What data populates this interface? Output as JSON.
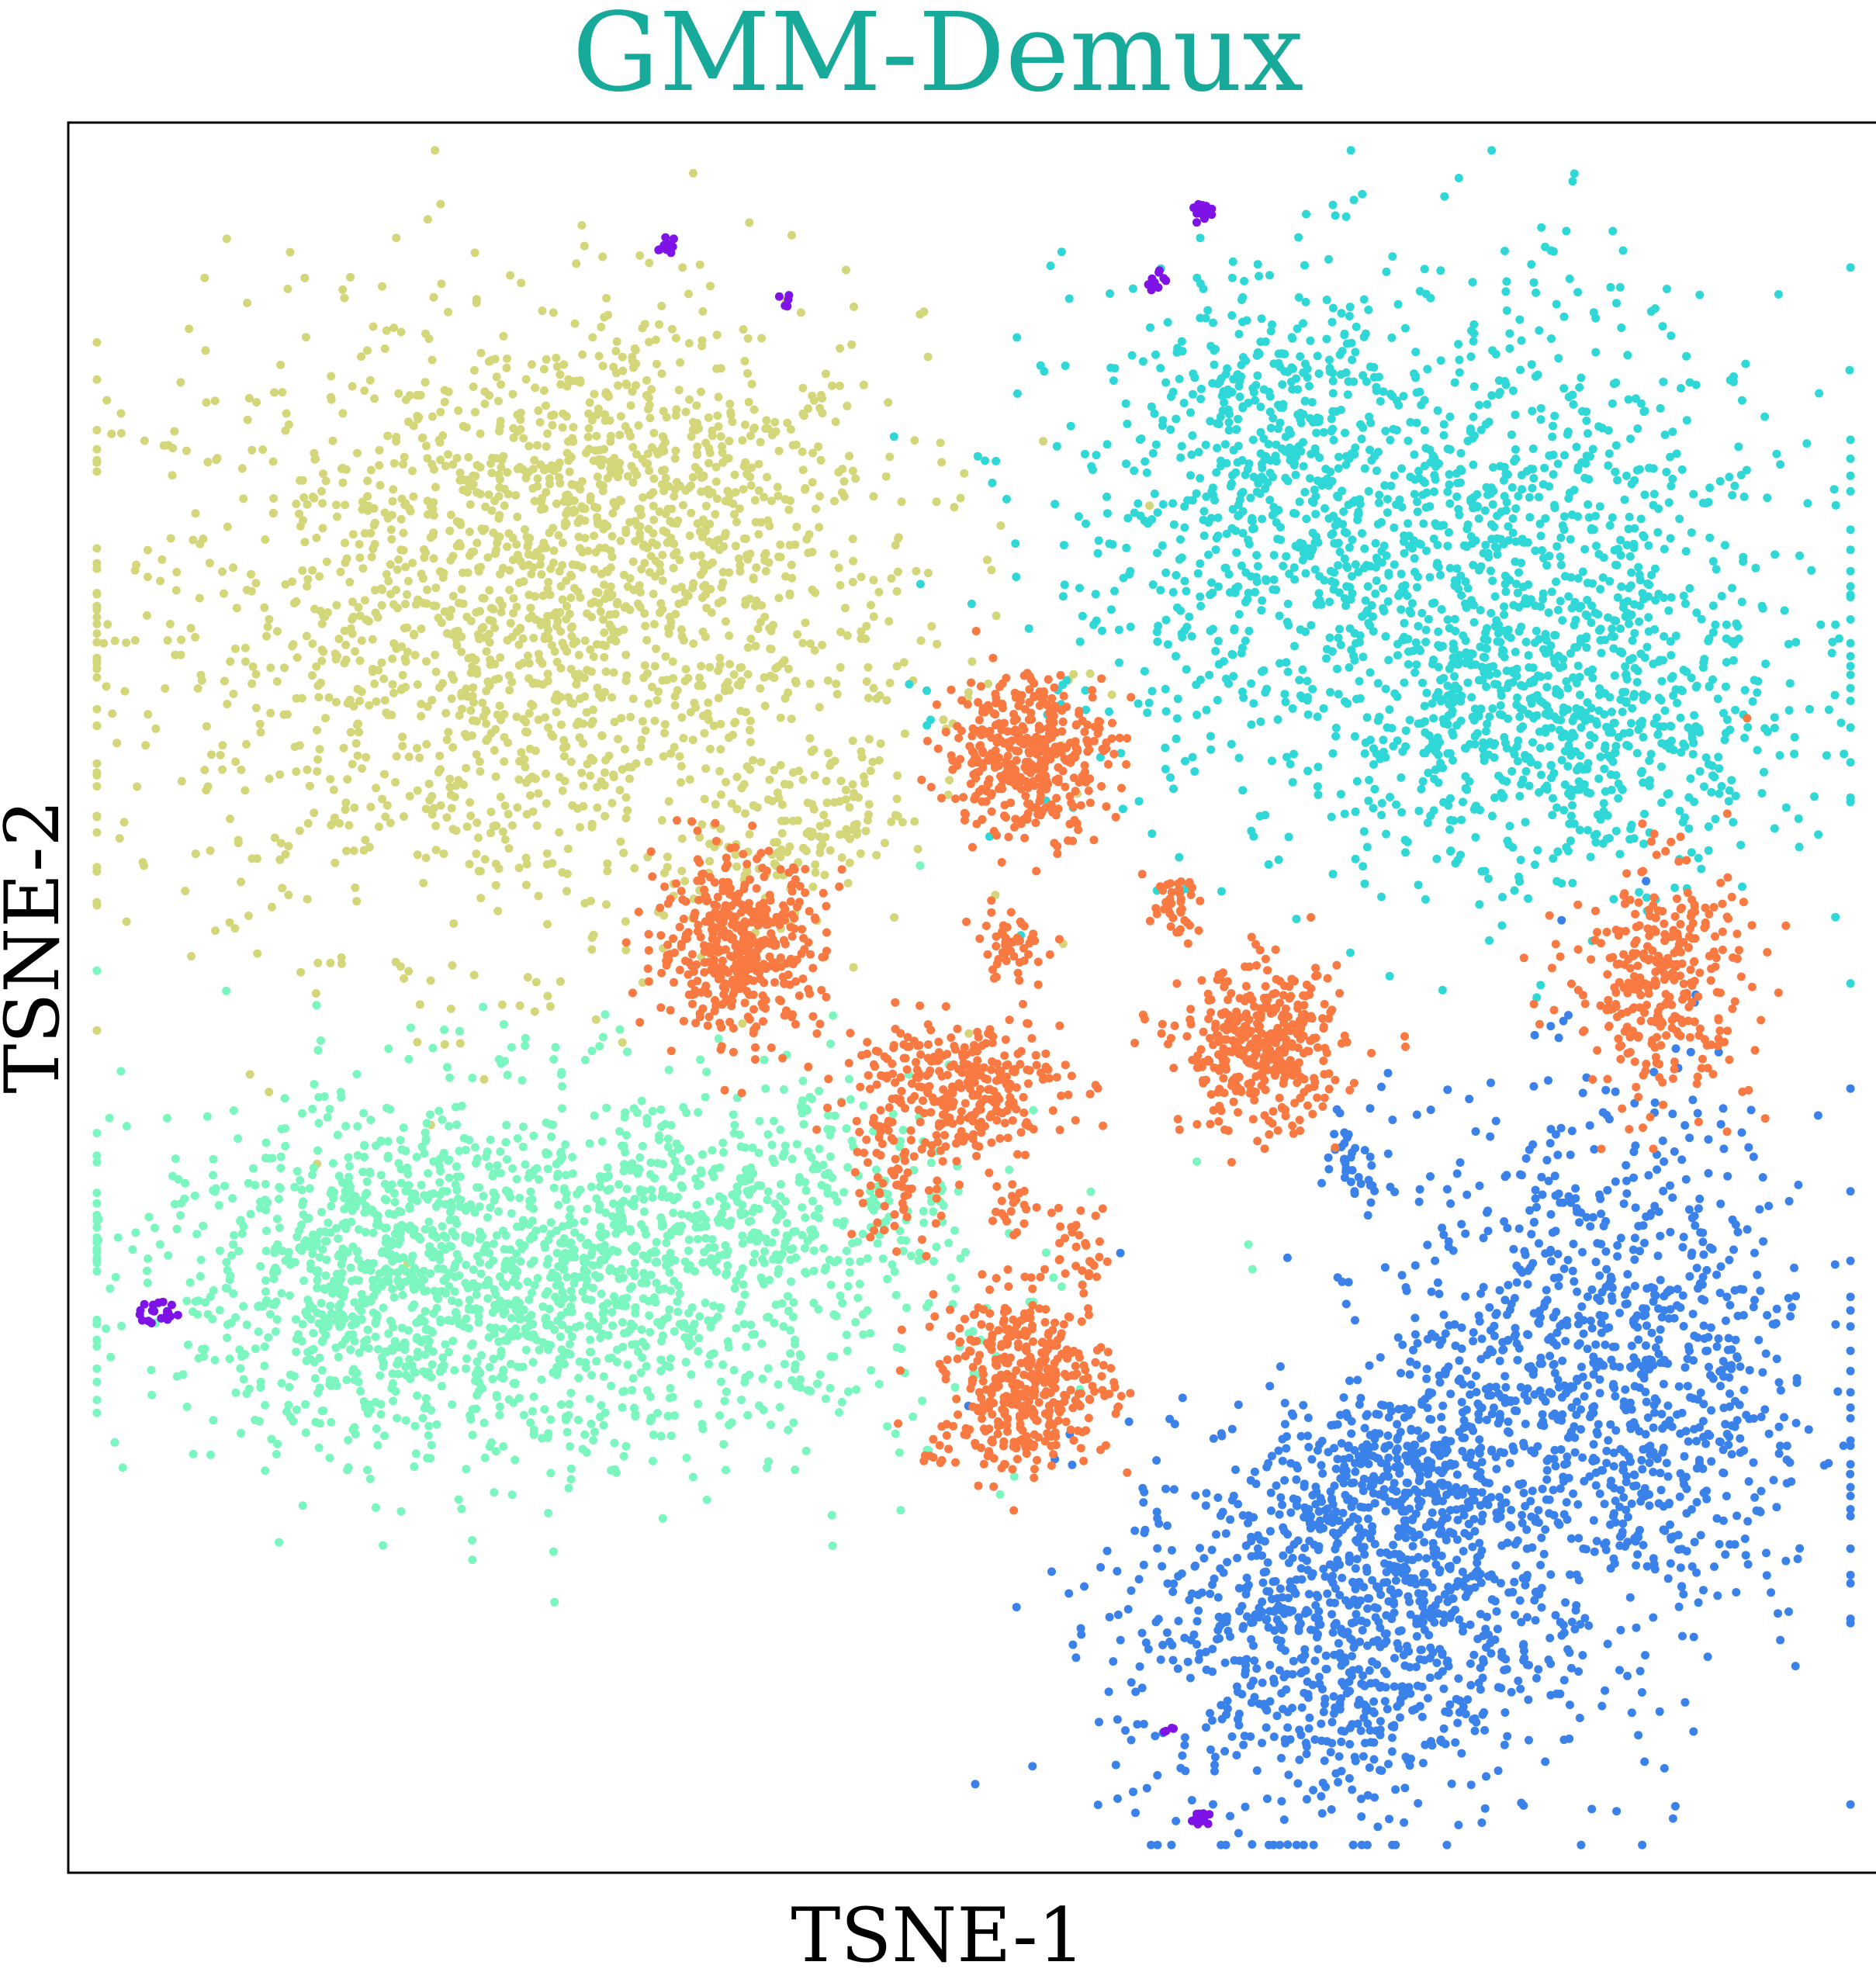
{
  "chart_data": {
    "type": "scatter",
    "title": "GMM-Demux",
    "xlabel": "TSNE-1",
    "ylabel": "TSNE-2",
    "xlim": [
      0,
      100
    ],
    "ylim": [
      0,
      100
    ],
    "ticks_visible": false,
    "grid": false,
    "legend": "none",
    "series": [
      {
        "color": "#d4d67a",
        "clusters": [
          {
            "cx": 25,
            "cy": 71,
            "sx": 11,
            "sy": 9,
            "n": 1700
          },
          {
            "cx": 32,
            "cy": 80,
            "sx": 5,
            "sy": 5,
            "n": 350
          },
          {
            "cx": 43,
            "cy": 61,
            "sx": 1.5,
            "sy": 1.5,
            "n": 40
          },
          {
            "cx": 39,
            "cy": 59,
            "sx": 2,
            "sy": 2,
            "n": 70
          }
        ]
      },
      {
        "color": "#2fd8d6",
        "clusters": [
          {
            "cx": 75,
            "cy": 75,
            "sx": 10,
            "sy": 8,
            "n": 1500
          },
          {
            "cx": 83,
            "cy": 65,
            "sx": 6,
            "sy": 4,
            "n": 500
          },
          {
            "cx": 66,
            "cy": 83,
            "sx": 3.5,
            "sy": 4,
            "n": 200
          }
        ]
      },
      {
        "color": "#7cf6bf",
        "clusters": [
          {
            "cx": 26,
            "cy": 34,
            "sx": 11,
            "sy": 5.5,
            "n": 1600
          },
          {
            "cx": 16,
            "cy": 34,
            "sx": 4,
            "sy": 4,
            "n": 300
          },
          {
            "cx": 39,
            "cy": 39,
            "sx": 5,
            "sy": 3,
            "n": 200
          }
        ]
      },
      {
        "color": "#3a82ea",
        "clusters": [
          {
            "cx": 70,
            "cy": 14,
            "sx": 6,
            "sy": 6,
            "n": 1000
          },
          {
            "cx": 85,
            "cy": 28,
            "sx": 6,
            "sy": 8,
            "n": 1100
          },
          {
            "cx": 74,
            "cy": 22,
            "sx": 3,
            "sy": 3,
            "n": 300
          },
          {
            "cx": 71,
            "cy": 41,
            "sx": 1,
            "sy": 1.5,
            "n": 40
          }
        ]
      },
      {
        "color": "#f87941",
        "clusters": [
          {
            "cx": 53,
            "cy": 64,
            "sx": 2.3,
            "sy": 2.3,
            "n": 400
          },
          {
            "cx": 37,
            "cy": 53,
            "sx": 2.3,
            "sy": 2.5,
            "n": 450
          },
          {
            "cx": 66,
            "cy": 47,
            "sx": 2.2,
            "sy": 2.3,
            "n": 400
          },
          {
            "cx": 53,
            "cy": 28,
            "sx": 2.3,
            "sy": 2.5,
            "n": 400
          },
          {
            "cx": 49,
            "cy": 45,
            "sx": 3,
            "sy": 2,
            "n": 300
          },
          {
            "cx": 46,
            "cy": 40,
            "sx": 1.2,
            "sy": 2.5,
            "n": 80
          },
          {
            "cx": 88,
            "cy": 51,
            "sx": 2.5,
            "sy": 3.5,
            "n": 330
          },
          {
            "cx": 52,
            "cy": 53,
            "sx": 1,
            "sy": 1,
            "n": 50
          },
          {
            "cx": 61,
            "cy": 55,
            "sx": 0.8,
            "sy": 0.9,
            "n": 40
          },
          {
            "cx": 56,
            "cy": 36,
            "sx": 0.7,
            "sy": 1.5,
            "n": 30
          },
          {
            "cx": 52,
            "cy": 38,
            "sx": 0.6,
            "sy": 0.7,
            "n": 20
          },
          {
            "cx": 48,
            "cy": 24,
            "sx": 0.6,
            "sy": 0.6,
            "n": 10
          }
        ]
      },
      {
        "color": "#7f12e6",
        "clusters": [
          {
            "cx": 33,
            "cy": 93,
            "sx": 0.2,
            "sy": 0.2,
            "n": 15
          },
          {
            "cx": 39.5,
            "cy": 90,
            "sx": 0.2,
            "sy": 0.2,
            "n": 5
          },
          {
            "cx": 62.5,
            "cy": 95,
            "sx": 0.3,
            "sy": 0.3,
            "n": 15
          },
          {
            "cx": 60,
            "cy": 91,
            "sx": 0.3,
            "sy": 0.3,
            "n": 10
          },
          {
            "cx": 5,
            "cy": 32,
            "sx": 0.5,
            "sy": 0.4,
            "n": 20
          },
          {
            "cx": 62.5,
            "cy": 3,
            "sx": 0.3,
            "sy": 0.3,
            "n": 15
          },
          {
            "cx": 61,
            "cy": 8,
            "sx": 0.2,
            "sy": 0.2,
            "n": 4
          }
        ]
      }
    ]
  }
}
